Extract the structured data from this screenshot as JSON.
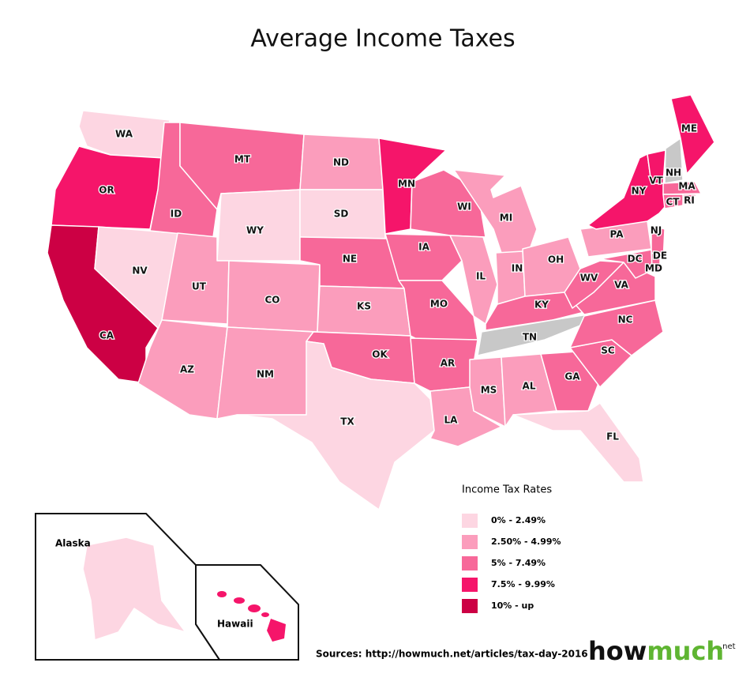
{
  "title": "Average Income Taxes",
  "no_data_color": "#c8c8c8",
  "legend": {
    "title": "Income Tax Rates",
    "items": [
      {
        "label": "0% - 2.49%",
        "color": "#fdd6e2"
      },
      {
        "label": "2.50% - 4.99%",
        "color": "#fb9dbc"
      },
      {
        "label": "5% - 7.49%",
        "color": "#f76899"
      },
      {
        "label": "7.5% - 9.99%",
        "color": "#f5156a"
      },
      {
        "label": "10% - up",
        "color": "#cc0044"
      }
    ]
  },
  "states": [
    {
      "label": "WA",
      "bin": 0
    },
    {
      "label": "OR",
      "bin": 3
    },
    {
      "label": "CA",
      "bin": 4
    },
    {
      "label": "NV",
      "bin": 0
    },
    {
      "label": "ID",
      "bin": 2
    },
    {
      "label": "MT",
      "bin": 2
    },
    {
      "label": "WY",
      "bin": 0
    },
    {
      "label": "UT",
      "bin": 1
    },
    {
      "label": "CO",
      "bin": 1
    },
    {
      "label": "AZ",
      "bin": 1
    },
    {
      "label": "NM",
      "bin": 1
    },
    {
      "label": "ND",
      "bin": 1
    },
    {
      "label": "SD",
      "bin": 0
    },
    {
      "label": "NE",
      "bin": 2
    },
    {
      "label": "KS",
      "bin": 1
    },
    {
      "label": "OK",
      "bin": 2
    },
    {
      "label": "TX",
      "bin": 0
    },
    {
      "label": "MN",
      "bin": 3
    },
    {
      "label": "IA",
      "bin": 2
    },
    {
      "label": "MO",
      "bin": 2
    },
    {
      "label": "AR",
      "bin": 2
    },
    {
      "label": "LA",
      "bin": 1
    },
    {
      "label": "WI",
      "bin": 2
    },
    {
      "label": "IL",
      "bin": 1
    },
    {
      "label": "MI",
      "bin": 1
    },
    {
      "label": "IN",
      "bin": 1
    },
    {
      "label": "OH",
      "bin": 1
    },
    {
      "label": "KY",
      "bin": 2
    },
    {
      "label": "TN",
      "bin": null
    },
    {
      "label": "MS",
      "bin": 1
    },
    {
      "label": "AL",
      "bin": 1
    },
    {
      "label": "GA",
      "bin": 2
    },
    {
      "label": "FL",
      "bin": 0
    },
    {
      "label": "SC",
      "bin": 2
    },
    {
      "label": "NC",
      "bin": 2
    },
    {
      "label": "VA",
      "bin": 2
    },
    {
      "label": "WV",
      "bin": 2
    },
    {
      "label": "PA",
      "bin": 1
    },
    {
      "label": "NY",
      "bin": 3
    },
    {
      "label": "VT",
      "bin": 3
    },
    {
      "label": "NH",
      "bin": null
    },
    {
      "label": "ME",
      "bin": 3
    },
    {
      "label": "MA",
      "bin": 2
    },
    {
      "label": "RI",
      "bin": 2
    },
    {
      "label": "CT",
      "bin": 2
    },
    {
      "label": "NJ",
      "bin": 2
    },
    {
      "label": "DE",
      "bin": 2
    },
    {
      "label": "MD",
      "bin": 2
    },
    {
      "label": "DC",
      "bin": 2
    }
  ],
  "insets": [
    {
      "label": "Alaska",
      "bin": 0
    },
    {
      "label": "Hawaii",
      "bin": 3
    }
  ],
  "source": "Sources: http://howmuch.net/articles/tax-day-2016",
  "logo": {
    "first": "how",
    "second": "much",
    "suffix": ".net"
  }
}
